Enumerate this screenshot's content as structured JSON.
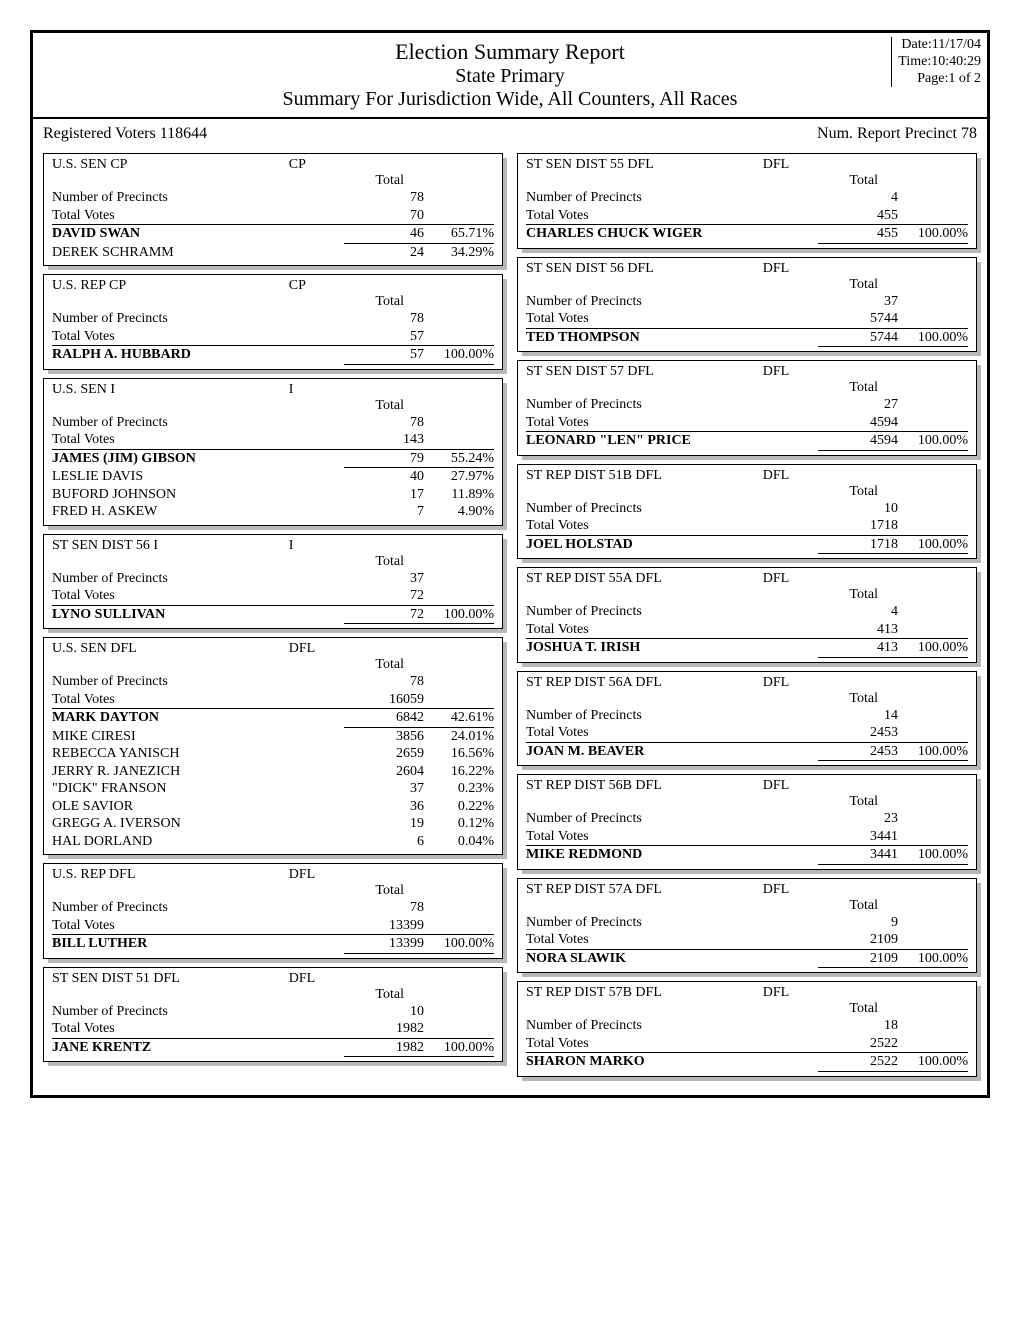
{
  "header": {
    "title_main": "Election Summary Report",
    "title_sub": "State Primary",
    "title_summary": "Summary For Jurisdiction Wide, All Counters, All Races",
    "date": "Date:11/17/04",
    "time": "Time:10:40:29",
    "page": "Page:1 of 2"
  },
  "subheader": {
    "registered": "Registered Voters 118644",
    "num_report": "Num. Report Precinct 78"
  },
  "labels": {
    "total": "Total",
    "num_precincts": "Number of Precincts",
    "total_votes": "Total Votes"
  },
  "left_races": [
    {
      "title": "U.S. SEN CP",
      "party": "CP",
      "precincts": "78",
      "total_votes": "70",
      "candidates": [
        {
          "name": "DAVID SWAN",
          "votes": "46",
          "pct": "65.71%",
          "winner": true
        },
        {
          "name": "DEREK SCHRAMM",
          "votes": "24",
          "pct": "34.29%",
          "winner": false
        }
      ]
    },
    {
      "title": "U.S. REP  CP",
      "party": "CP",
      "precincts": "78",
      "total_votes": "57",
      "candidates": [
        {
          "name": "RALPH A. HUBBARD",
          "votes": "57",
          "pct": "100.00%",
          "winner": true
        }
      ]
    },
    {
      "title": "U.S. SEN  I",
      "party": "I",
      "precincts": "78",
      "total_votes": "143",
      "candidates": [
        {
          "name": "JAMES (JIM) GIBSON",
          "votes": "79",
          "pct": "55.24%",
          "winner": true
        },
        {
          "name": "LESLIE DAVIS",
          "votes": "40",
          "pct": "27.97%",
          "winner": false
        },
        {
          "name": "BUFORD JOHNSON",
          "votes": "17",
          "pct": "11.89%",
          "winner": false
        },
        {
          "name": "FRED H. ASKEW",
          "votes": "7",
          "pct": "4.90%",
          "winner": false
        }
      ]
    },
    {
      "title": "ST SEN DIST 56 I",
      "party": "I",
      "precincts": "37",
      "total_votes": "72",
      "candidates": [
        {
          "name": "LYNO SULLIVAN",
          "votes": "72",
          "pct": "100.00%",
          "winner": true
        }
      ]
    },
    {
      "title": "U.S. SEN DFL",
      "party": "DFL",
      "precincts": "78",
      "total_votes": "16059",
      "candidates": [
        {
          "name": "MARK DAYTON",
          "votes": "6842",
          "pct": "42.61%",
          "winner": true
        },
        {
          "name": "MIKE CIRESI",
          "votes": "3856",
          "pct": "24.01%",
          "winner": false
        },
        {
          "name": "REBECCA YANISCH",
          "votes": "2659",
          "pct": "16.56%",
          "winner": false
        },
        {
          "name": "JERRY R. JANEZICH",
          "votes": "2604",
          "pct": "16.22%",
          "winner": false
        },
        {
          "name": "\"DICK\" FRANSON",
          "votes": "37",
          "pct": "0.23%",
          "winner": false
        },
        {
          "name": "OLE SAVIOR",
          "votes": "36",
          "pct": "0.22%",
          "winner": false
        },
        {
          "name": "GREGG A. IVERSON",
          "votes": "19",
          "pct": "0.12%",
          "winner": false
        },
        {
          "name": "HAL DORLAND",
          "votes": "6",
          "pct": "0.04%",
          "winner": false
        }
      ]
    },
    {
      "title": "U.S. REP DFL",
      "party": "DFL",
      "precincts": "78",
      "total_votes": "13399",
      "candidates": [
        {
          "name": "BILL LUTHER",
          "votes": "13399",
          "pct": "100.00%",
          "winner": true
        }
      ]
    },
    {
      "title": "ST SEN DIST 51  DFL",
      "party": "DFL",
      "precincts": "10",
      "total_votes": "1982",
      "candidates": [
        {
          "name": "JANE KRENTZ",
          "votes": "1982",
          "pct": "100.00%",
          "winner": true
        }
      ]
    }
  ],
  "right_races": [
    {
      "title": "ST SEN DIST 55  DFL",
      "party": "DFL",
      "precincts": "4",
      "total_votes": "455",
      "candidates": [
        {
          "name": "CHARLES CHUCK WIGER",
          "votes": "455",
          "pct": "100.00%",
          "winner": true
        }
      ]
    },
    {
      "title": "ST SEN DIST 56  DFL",
      "party": "DFL",
      "precincts": "37",
      "total_votes": "5744",
      "candidates": [
        {
          "name": "TED THOMPSON",
          "votes": "5744",
          "pct": "100.00%",
          "winner": true
        }
      ]
    },
    {
      "title": "ST SEN DIST 57  DFL",
      "party": "DFL",
      "precincts": "27",
      "total_votes": "4594",
      "candidates": [
        {
          "name": "LEONARD \"LEN\" PRICE",
          "votes": "4594",
          "pct": "100.00%",
          "winner": true
        }
      ]
    },
    {
      "title": "ST REP DIST 51B  DFL",
      "party": "DFL",
      "precincts": "10",
      "total_votes": "1718",
      "candidates": [
        {
          "name": "JOEL HOLSTAD",
          "votes": "1718",
          "pct": "100.00%",
          "winner": true
        }
      ]
    },
    {
      "title": "ST REP DIST 55A  DFL",
      "party": "DFL",
      "precincts": "4",
      "total_votes": "413",
      "candidates": [
        {
          "name": "JOSHUA T. IRISH",
          "votes": "413",
          "pct": "100.00%",
          "winner": true
        }
      ]
    },
    {
      "title": "ST REP DIST 56A  DFL",
      "party": "DFL",
      "precincts": "14",
      "total_votes": "2453",
      "candidates": [
        {
          "name": "JOAN M. BEAVER",
          "votes": "2453",
          "pct": "100.00%",
          "winner": true
        }
      ]
    },
    {
      "title": "ST REP DIST 56B  DFL",
      "party": "DFL",
      "precincts": "23",
      "total_votes": "3441",
      "candidates": [
        {
          "name": "MIKE REDMOND",
          "votes": "3441",
          "pct": "100.00%",
          "winner": true
        }
      ]
    },
    {
      "title": "ST REP DIST 57A  DFL",
      "party": "DFL",
      "precincts": "9",
      "total_votes": "2109",
      "candidates": [
        {
          "name": "NORA SLAWIK",
          "votes": "2109",
          "pct": "100.00%",
          "winner": true
        }
      ]
    },
    {
      "title": "ST REP DIST 57B  DFL",
      "party": "DFL",
      "precincts": "18",
      "total_votes": "2522",
      "candidates": [
        {
          "name": "SHARON MARKO",
          "votes": "2522",
          "pct": "100.00%",
          "winner": true
        }
      ]
    }
  ]
}
